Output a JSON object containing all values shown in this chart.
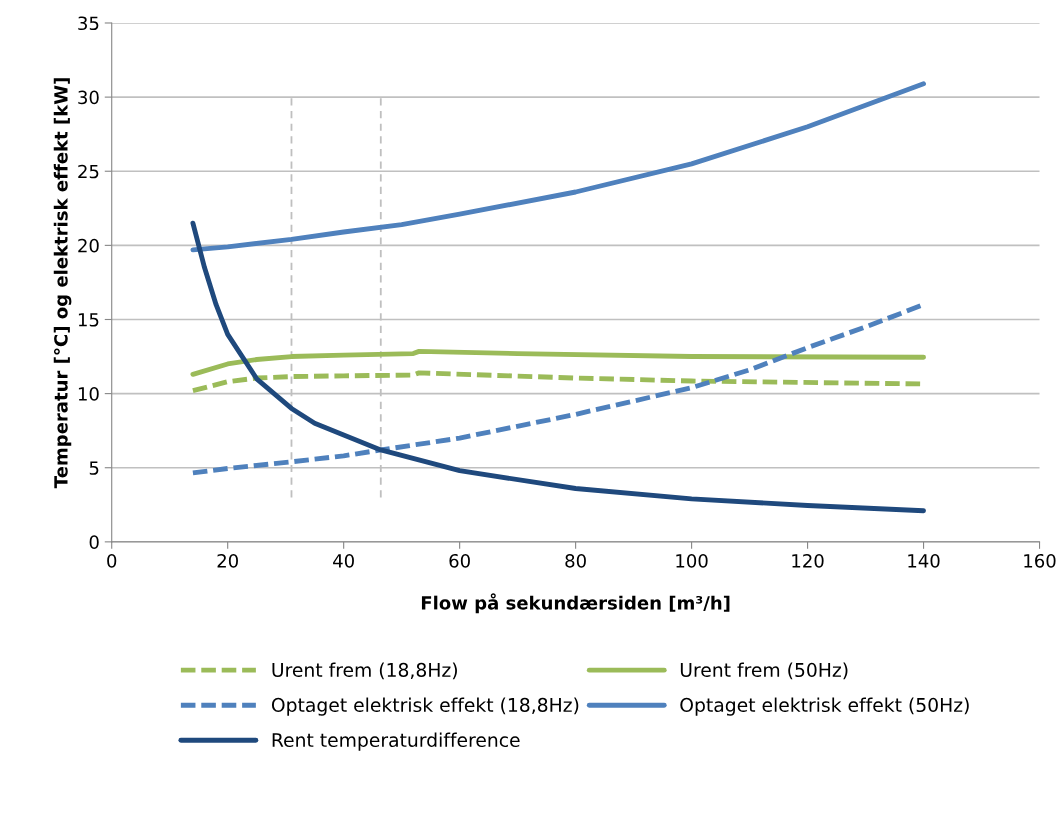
{
  "chart_data": {
    "type": "line",
    "xlabel": "Flow på sekundærsiden [m³/h]",
    "ylabel": "Temperatur [°C] og elektrisk effekt [kW]",
    "xlim": [
      0,
      160
    ],
    "xticks": [
      0,
      20,
      40,
      60,
      80,
      100,
      120,
      140,
      160
    ],
    "ylim": [
      0,
      35
    ],
    "yticks": [
      0,
      5,
      10,
      15,
      20,
      25,
      30,
      35
    ],
    "grid": "y",
    "legend": "bottom",
    "marker": "none",
    "series": [
      {
        "name": "Urent frem (18,8Hz)",
        "color": "#9bbb59",
        "line_style": "dashed",
        "x": [
          14,
          20,
          25,
          31,
          40,
          52,
          53,
          80,
          100,
          140
        ],
        "values": [
          10.2,
          10.8,
          11.05,
          11.15,
          11.2,
          11.25,
          11.4,
          11.05,
          10.85,
          10.65
        ]
      },
      {
        "name": "Urent frem (50Hz)",
        "color": "#9bbb59",
        "line_style": "solid",
        "x": [
          14,
          20,
          25,
          31,
          40,
          52,
          53,
          70,
          100,
          140
        ],
        "values": [
          11.3,
          12.0,
          12.3,
          12.5,
          12.6,
          12.7,
          12.85,
          12.7,
          12.5,
          12.45
        ]
      },
      {
        "name": "Optaget elektrisk effekt (18,8Hz)",
        "color": "#4f81bd",
        "line_style": "dashed",
        "x": [
          14,
          20,
          31,
          40,
          46.4,
          60,
          80,
          100,
          110,
          120,
          130,
          140
        ],
        "values": [
          4.65,
          4.95,
          5.4,
          5.8,
          6.2,
          7.0,
          8.6,
          10.4,
          11.6,
          13.1,
          14.5,
          16.0
        ]
      },
      {
        "name": "Optaget elektrisk effekt (50Hz)",
        "color": "#4f81bd",
        "line_style": "solid",
        "x": [
          14,
          20,
          31,
          40,
          50,
          60,
          80,
          100,
          120,
          140
        ],
        "values": [
          19.7,
          19.9,
          20.4,
          20.9,
          21.4,
          22.1,
          23.6,
          25.5,
          28.0,
          30.9
        ]
      },
      {
        "name": "Rent temperaturdifference",
        "color": "#1f497d",
        "line_style": "solid",
        "x": [
          14,
          16,
          18,
          20,
          25,
          31,
          35,
          40,
          46.4,
          60,
          80,
          100,
          120,
          140
        ],
        "values": [
          21.5,
          18.5,
          16.0,
          14.0,
          11.0,
          9.0,
          8.0,
          7.2,
          6.2,
          4.8,
          3.6,
          2.9,
          2.45,
          2.1
        ]
      },
      {
        "color": "#bfbfbf",
        "line_style": "dashed",
        "x": [
          31,
          31
        ],
        "values": [
          3,
          30
        ]
      },
      {
        "color": "#bfbfbf",
        "line_style": "dashed",
        "x": [
          46.4,
          46.4
        ],
        "values": [
          3,
          30
        ]
      }
    ]
  }
}
